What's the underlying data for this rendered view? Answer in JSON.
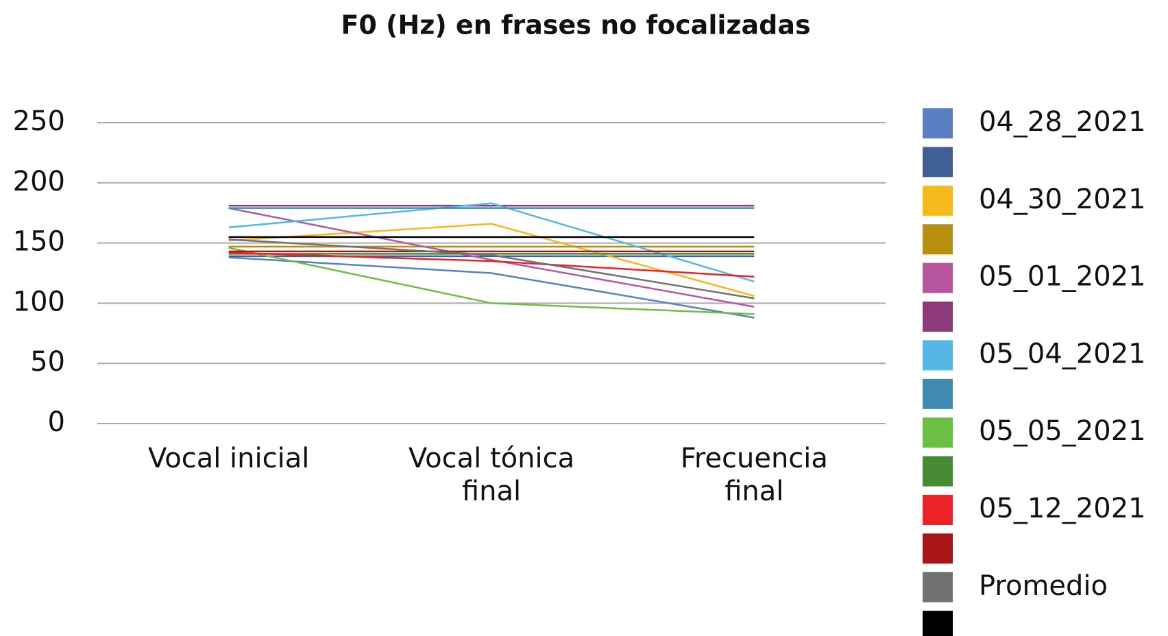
{
  "chart_data": {
    "type": "line",
    "title": "F0 (Hz) en frases no focalizadas",
    "categories": [
      "Vocal inicial",
      "Vocal tónica final",
      "Frecuencia final"
    ],
    "ylim": [
      0,
      250
    ],
    "yticks": [
      0,
      50,
      100,
      150,
      200,
      250
    ],
    "grid": true,
    "legend": "right",
    "series": [
      {
        "name": "04_28_2021",
        "color": "#5a7fc3",
        "values": [
          138,
          125,
          88
        ]
      },
      {
        "name": null,
        "color": "#3f5f95",
        "values": [
          139,
          139,
          139
        ]
      },
      {
        "name": "04_30_2021",
        "color": "#f6b91c",
        "values": [
          152,
          166,
          106
        ]
      },
      {
        "name": null,
        "color": "#b8900f",
        "values": [
          147,
          147,
          147
        ]
      },
      {
        "name": "05_01_2021",
        "color": "#b6559e",
        "values": [
          179,
          136,
          97
        ]
      },
      {
        "name": null,
        "color": "#8c3a78",
        "values": [
          181,
          181,
          181
        ]
      },
      {
        "name": "05_04_2021",
        "color": "#55b7e6",
        "values": [
          163,
          183,
          118
        ]
      },
      {
        "name": null,
        "color": "#3f8bb0",
        "values": [
          179,
          179,
          179
        ]
      },
      {
        "name": "05_05_2021",
        "color": "#6cbf45",
        "values": [
          146,
          100,
          91
        ]
      },
      {
        "name": null,
        "color": "#468a34",
        "values": [
          141,
          141,
          141
        ]
      },
      {
        "name": "05_12_2021",
        "color": "#ec2229",
        "values": [
          142,
          135,
          122
        ]
      },
      {
        "name": null,
        "color": "#aa1518",
        "values": [
          143,
          143,
          143
        ]
      },
      {
        "name": "Promedio",
        "color": "#707070",
        "values": [
          153,
          140,
          104
        ]
      },
      {
        "name": null,
        "color": "#000000",
        "values": [
          155,
          155,
          155
        ]
      }
    ]
  }
}
